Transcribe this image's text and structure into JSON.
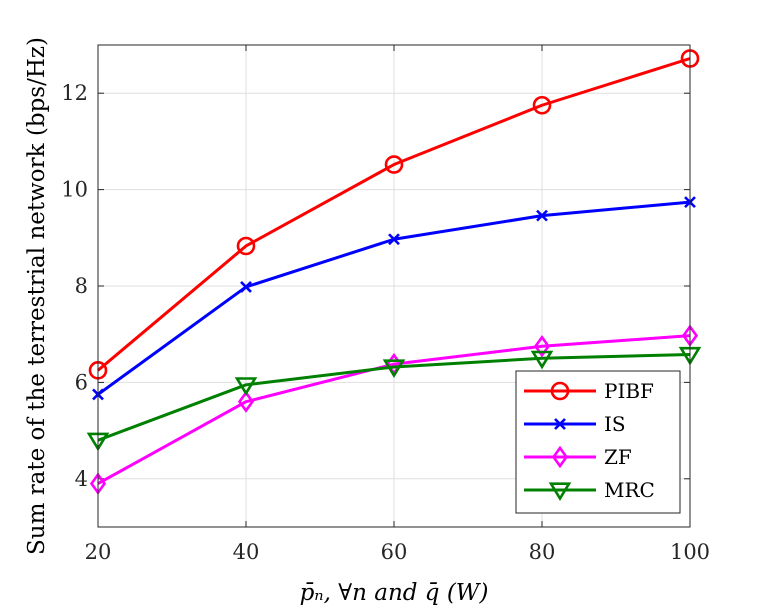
{
  "chart_data": {
    "type": "line",
    "title": "",
    "xlabel": "p̄ₙ, ∀n and q̄ (W)",
    "ylabel": "Sum rate of the terrestrial network (bps/Hz)",
    "x": [
      20,
      40,
      60,
      80,
      100
    ],
    "xlim": [
      20,
      100
    ],
    "ylim": [
      3,
      13
    ],
    "xticks": [
      20,
      40,
      60,
      80,
      100
    ],
    "yticks": [
      4,
      6,
      8,
      10,
      12
    ],
    "grid": true,
    "legend_position": "bottom-right",
    "series": [
      {
        "name": "PIBF",
        "color": "#ff0000",
        "marker": "circle",
        "values": [
          6.25,
          8.83,
          10.52,
          11.75,
          12.72
        ]
      },
      {
        "name": "IS",
        "color": "#0000ff",
        "marker": "x",
        "values": [
          5.75,
          7.98,
          8.97,
          9.46,
          9.74
        ]
      },
      {
        "name": "ZF",
        "color": "#ff00ff",
        "marker": "diamond",
        "values": [
          3.9,
          5.6,
          6.38,
          6.75,
          6.97
        ]
      },
      {
        "name": "MRC",
        "color": "#008000",
        "marker": "triangle",
        "values": [
          4.8,
          5.95,
          6.32,
          6.5,
          6.58
        ]
      }
    ]
  }
}
